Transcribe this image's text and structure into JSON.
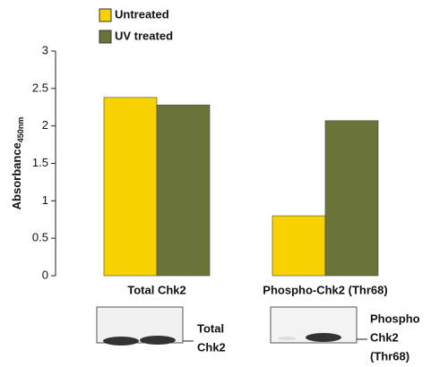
{
  "chart_data": {
    "type": "bar",
    "y_label": "Absorbance",
    "y_label_subscript": "450nm",
    "categories": [
      "Total Chk2",
      "Phospho-Chk2 (Thr68)"
    ],
    "series": [
      {
        "name": "Untreated",
        "color": "#f7d200",
        "values": [
          2.38,
          0.8
        ]
      },
      {
        "name": "UV treated",
        "color": "#6b7438",
        "values": [
          2.28,
          2.07
        ]
      }
    ],
    "ylim": [
      0,
      3
    ],
    "yticks": [
      0,
      0.5,
      1,
      1.5,
      2,
      2.5,
      3
    ],
    "grid": false
  },
  "blots": [
    {
      "label_lines": [
        "Total",
        "Chk2"
      ]
    },
    {
      "label_lines": [
        "Phospho",
        "Chk2",
        "(Thr68)"
      ]
    }
  ]
}
